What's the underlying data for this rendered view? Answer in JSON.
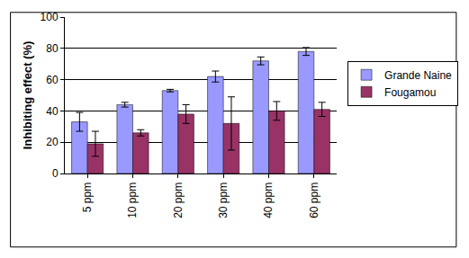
{
  "chart_data": {
    "type": "bar",
    "y_label": "Inhibiting effect (%)",
    "categories": [
      "5 ppm",
      "10 ppm",
      "20 ppm",
      "30 ppm",
      "40 ppm",
      "60 ppm"
    ],
    "series": [
      {
        "name": "Grande Naine",
        "color": "#9999ff",
        "values": [
          33,
          44,
          53,
          62,
          72,
          78
        ],
        "errors": [
          6,
          1.5,
          0.8,
          3.5,
          2.5,
          2.5
        ]
      },
      {
        "name": "Fougamou",
        "color": "#993366",
        "values": [
          19,
          26,
          38,
          32,
          40,
          41
        ],
        "errors": [
          8,
          2,
          6,
          17,
          6,
          4.5
        ]
      }
    ],
    "ylim": [
      0,
      100
    ],
    "yticks": [
      0,
      20,
      40,
      60,
      80,
      100
    ],
    "grid": true,
    "legend": "right"
  }
}
